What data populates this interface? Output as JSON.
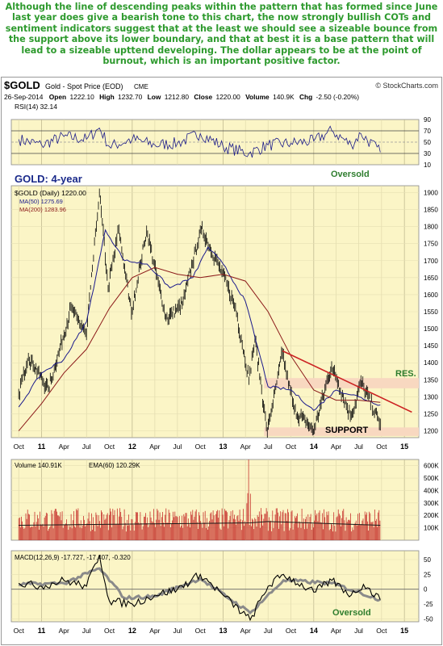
{
  "commentary": "Although the line of descending peaks within the pattern that has formed since June last year does give a bearish tone to this chart, the now strongly bullish COTs and sentiment indicators suggest that at the least we should see a sizeable bounce from the support above its lower boundary, and that at best it is a base pattern that will lead to a sizeable upttend developing. The dollar appears to be at the point of burnout, which is an important positive factor.",
  "header": {
    "symbol": "$GOLD",
    "name": "Gold - Spot Price (EOD)",
    "exchange": "CME",
    "credit": "© StockCharts.com",
    "date": "26-Sep-2014",
    "open_label": "Open",
    "open": "1222.10",
    "high_label": "High",
    "high": "1232.70",
    "low_label": "Low",
    "low": "1212.80",
    "close_label": "Close",
    "close": "1220.00",
    "volume_label": "Volume",
    "volume": "140.9K",
    "chg_label": "Chg",
    "chg": "-2.50 (-0.20%)"
  },
  "colors": {
    "panel_bg": "#fbf5c6",
    "price": "#000000",
    "ma50": "#1a1a8c",
    "ma200": "#8c1a1a",
    "rsi": "#1c1c8a",
    "volume": "#c01818",
    "macd": "#000000",
    "signal": "#8a8a8a",
    "band": "#f8d8c0",
    "trendline": "#cc2222",
    "annotation": "#2e7d2e",
    "title_blue": "#1a2a8a"
  },
  "chart_data": [
    {
      "type": "line",
      "panel": "rsi",
      "legend": "RSI(14) 32.14",
      "y_ticks": [
        10,
        30,
        50,
        70,
        90
      ],
      "ylim": [
        10,
        90
      ],
      "reference_lines": [
        30,
        50,
        70
      ],
      "series": [
        {
          "name": "RSI(14)",
          "x": [
            "2010-10-01",
            "2011-01-01",
            "2011-04-01",
            "2011-07-01",
            "2011-08-22",
            "2011-10-01",
            "2012-01-01",
            "2012-04-01",
            "2012-07-01",
            "2012-10-01",
            "2013-01-01",
            "2013-04-15",
            "2013-07-01",
            "2013-10-01",
            "2014-01-01",
            "2014-03-15",
            "2014-06-01",
            "2014-07-10",
            "2014-09-26"
          ],
          "y": [
            55,
            45,
            60,
            55,
            75,
            42,
            55,
            45,
            48,
            65,
            42,
            30,
            45,
            48,
            52,
            70,
            45,
            65,
            32
          ]
        }
      ],
      "annotations": [
        "Oversold"
      ]
    },
    {
      "type": "line",
      "panel": "price",
      "title": "GOLD: 4-year",
      "legend": [
        "$GOLD (Daily) 1220.00",
        "MA(50) 1275.69",
        "MA(200) 1283.96"
      ],
      "x_ticks": [
        "Oct",
        "11",
        "Apr",
        "Jul",
        "Oct",
        "12",
        "Apr",
        "Jul",
        "Oct",
        "13",
        "Apr",
        "Jul",
        "Oct",
        "14",
        "Apr",
        "Jul",
        "Oct",
        "15"
      ],
      "y_ticks": [
        1200,
        1250,
        1300,
        1350,
        1400,
        1450,
        1500,
        1550,
        1600,
        1650,
        1700,
        1750,
        1800,
        1850,
        1900
      ],
      "ylim": [
        1180,
        1920
      ],
      "series": [
        {
          "name": "$GOLD (Daily)",
          "x": [
            "2010-10-01",
            "2010-11-09",
            "2011-01-28",
            "2011-04-29",
            "2011-07-01",
            "2011-08-22",
            "2011-09-26",
            "2011-11-08",
            "2011-12-29",
            "2012-02-28",
            "2012-05-16",
            "2012-07-20",
            "2012-10-05",
            "2012-12-31",
            "2013-02-20",
            "2013-04-15",
            "2013-05-09",
            "2013-06-28",
            "2013-08-28",
            "2013-10-15",
            "2013-12-31",
            "2014-03-14",
            "2014-06-01",
            "2014-07-10",
            "2014-09-26"
          ],
          "y": [
            1310,
            1420,
            1320,
            1560,
            1485,
            1900,
            1620,
            1790,
            1545,
            1790,
            1530,
            1570,
            1795,
            1660,
            1560,
            1350,
            1470,
            1195,
            1430,
            1260,
            1200,
            1390,
            1240,
            1345,
            1220
          ]
        },
        {
          "name": "MA(50)",
          "x": [
            "2010-10-01",
            "2011-01-01",
            "2011-04-01",
            "2011-07-01",
            "2011-09-15",
            "2011-12-01",
            "2012-03-01",
            "2012-06-01",
            "2012-09-01",
            "2012-11-01",
            "2013-01-01",
            "2013-04-01",
            "2013-07-01",
            "2013-10-01",
            "2014-01-01",
            "2014-04-01",
            "2014-07-01",
            "2014-09-26"
          ],
          "y": [
            1270,
            1370,
            1410,
            1520,
            1790,
            1700,
            1690,
            1620,
            1650,
            1740,
            1690,
            1580,
            1330,
            1320,
            1260,
            1320,
            1300,
            1276
          ]
        },
        {
          "name": "MA(200)",
          "x": [
            "2010-10-01",
            "2011-01-01",
            "2011-04-01",
            "2011-07-01",
            "2011-10-01",
            "2012-01-01",
            "2012-04-01",
            "2012-07-01",
            "2012-10-01",
            "2013-01-01",
            "2013-04-01",
            "2013-07-01",
            "2013-10-01",
            "2014-01-01",
            "2014-04-01",
            "2014-07-01",
            "2014-09-26"
          ],
          "y": [
            1200,
            1280,
            1370,
            1440,
            1560,
            1650,
            1680,
            1660,
            1650,
            1660,
            1640,
            1550,
            1420,
            1320,
            1290,
            1290,
            1284
          ]
        }
      ],
      "annotations": [
        {
          "text": "RES.",
          "band": [
            1325,
            1355
          ]
        },
        {
          "text": "SUPPORT",
          "band": [
            1185,
            1210
          ]
        },
        {
          "text": "",
          "trendline": {
            "from": [
              "2013-08-28",
              1435
            ],
            "to": [
              "2015-01-31",
              1255
            ]
          }
        }
      ]
    },
    {
      "type": "bar",
      "panel": "volume",
      "legend": [
        "Volume 140.91K",
        "EMA(60) 120.29K"
      ],
      "y_ticks": [
        "100K",
        "200K",
        "300K",
        "400K",
        "500K",
        "600K"
      ],
      "ylim": [
        0,
        650000
      ],
      "series": [
        {
          "name": "Volume",
          "spike": {
            "x": "2013-04-15",
            "y": 680000
          },
          "typical_range": [
            70000,
            260000
          ]
        },
        {
          "name": "EMA(60)",
          "x": [
            "2010-10-01",
            "2012-01-01",
            "2013-04-20",
            "2013-07-01",
            "2014-09-26"
          ],
          "y": [
            120000,
            130000,
            140000,
            150000,
            120290
          ]
        }
      ]
    },
    {
      "type": "line",
      "panel": "macd",
      "legend": "MACD(12,26,9) -17.727, -17.407, -0.320",
      "y_ticks": [
        -50,
        -25,
        0,
        25,
        50
      ],
      "ylim": [
        -55,
        65
      ],
      "x_ticks": [
        "Oct",
        "11",
        "Apr",
        "Jul",
        "Oct",
        "12",
        "Apr",
        "Jul",
        "Oct",
        "13",
        "Apr",
        "Jul",
        "Oct",
        "14",
        "Apr",
        "Jul",
        "Oct",
        "15"
      ],
      "series": [
        {
          "name": "MACD",
          "x": [
            "2010-10-01",
            "2011-01-01",
            "2011-04-01",
            "2011-07-01",
            "2011-08-22",
            "2011-10-01",
            "2012-01-01",
            "2012-04-01",
            "2012-07-01",
            "2012-10-01",
            "2013-01-01",
            "2013-04-20",
            "2013-07-01",
            "2013-09-01",
            "2014-01-01",
            "2014-03-15",
            "2014-06-01",
            "2014-07-20",
            "2014-09-26"
          ],
          "y": [
            10,
            5,
            15,
            5,
            58,
            -20,
            -25,
            -10,
            0,
            25,
            -10,
            -52,
            5,
            25,
            -5,
            15,
            -10,
            8,
            -17.727
          ]
        },
        {
          "name": "Signal",
          "x": [
            "2010-10-01",
            "2011-04-01",
            "2011-08-22",
            "2011-12-01",
            "2012-04-01",
            "2012-10-01",
            "2013-04-20",
            "2013-09-01",
            "2014-03-15",
            "2014-09-26"
          ],
          "y": [
            8,
            10,
            35,
            -15,
            -12,
            18,
            -40,
            15,
            10,
            -17.407
          ]
        }
      ],
      "annotations": [
        "Oversold"
      ]
    }
  ]
}
